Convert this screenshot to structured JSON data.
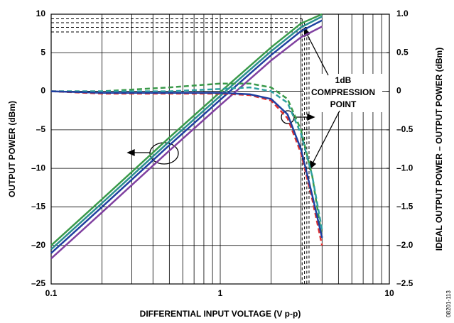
{
  "chart_data": {
    "type": "line",
    "xlabel": "DIFFERENTIAL INPUT VOLTAGE (V p-p)",
    "ylabel": "OUTPUT POWER (dBm)",
    "y2label": "IDEAL OUTPUT POWER – OUTPUT POWER (dBm)",
    "xscale": "log",
    "xlim": [
      0.1,
      10
    ],
    "xticks": [
      0.1,
      1,
      10
    ],
    "x_minor_ticks": [
      0.2,
      0.3,
      0.4,
      0.5,
      0.6,
      0.7,
      0.8,
      0.9,
      2,
      3,
      4,
      5,
      6,
      7,
      8,
      9
    ],
    "ylim": [
      -25,
      10
    ],
    "yticks": [
      {
        "value": -25,
        "label": "–25"
      },
      {
        "value": -20,
        "label": "–20"
      },
      {
        "value": -15,
        "label": "–15"
      },
      {
        "value": -10,
        "label": "–10"
      },
      {
        "value": -5,
        "label": "–5"
      },
      0,
      5,
      10
    ],
    "y2lim": [
      -2.5,
      1.0
    ],
    "y2ticks": [
      {
        "value": -2.5,
        "label": "–2.5"
      },
      {
        "value": -2.0,
        "label": "–2.0"
      },
      {
        "value": -1.5,
        "label": "–1.5"
      },
      {
        "value": -1.0,
        "label": "–1.0"
      },
      {
        "value": -0.5,
        "label": "–0.5"
      },
      0,
      0.5,
      {
        "value": 1.0,
        "label": "1.0"
      }
    ],
    "grid": true,
    "series": [
      {
        "color": "#3a9a4a",
        "dashed": false,
        "x": [
          0.1,
          0.2,
          0.5,
          1,
          2,
          3,
          4
        ],
        "values": [
          -20.0,
          -14.0,
          -6.0,
          -0.1,
          5.7,
          8.8,
          10.0
        ]
      },
      {
        "color": "#2a8f8f",
        "dashed": false,
        "x": [
          0.1,
          0.2,
          0.5,
          1,
          2,
          3,
          4
        ],
        "values": [
          -20.5,
          -14.5,
          -6.5,
          -0.6,
          5.2,
          8.3,
          9.7
        ]
      },
      {
        "color": "#2040a0",
        "dashed": false,
        "x": [
          0.1,
          0.2,
          0.5,
          1,
          2,
          3,
          4
        ],
        "values": [
          -21.0,
          -15.0,
          -7.0,
          -1.1,
          4.7,
          7.8,
          9.2
        ]
      },
      {
        "color": "#8040a0",
        "dashed": false,
        "x": [
          0.1,
          0.2,
          0.5,
          1,
          2,
          3,
          4
        ],
        "values": [
          -21.7,
          -15.7,
          -7.7,
          -1.8,
          4.0,
          7.0,
          8.4
        ]
      },
      {
        "color": "#3a9a4a",
        "dashed": true,
        "axis": "y2",
        "x": [
          0.1,
          0.2,
          0.5,
          1,
          1.5,
          2,
          2.5,
          3,
          3.5,
          4
        ],
        "values": [
          0,
          0,
          0.05,
          0.1,
          0.1,
          0.05,
          -0.1,
          -0.5,
          -1.1,
          -1.9
        ]
      },
      {
        "color": "#2fa0a0",
        "dashed": true,
        "axis": "y2",
        "x": [
          0.1,
          0.2,
          0.5,
          1,
          1.5,
          2,
          2.5,
          3,
          3.5,
          4
        ],
        "values": [
          0,
          0,
          0,
          0.03,
          0.05,
          0,
          -0.15,
          -0.55,
          -1.1,
          -1.8
        ]
      },
      {
        "color": "#e03030",
        "dashed": true,
        "axis": "y2",
        "x": [
          0.1,
          0.2,
          0.5,
          1,
          1.5,
          2,
          2.5,
          3,
          3.5,
          4
        ],
        "values": [
          0,
          -0.03,
          -0.03,
          -0.03,
          -0.05,
          -0.12,
          -0.35,
          -0.8,
          -1.4,
          -2.0
        ]
      },
      {
        "color": "#2040a0",
        "dashed": false,
        "axis": "y2",
        "x": [
          0.1,
          0.2,
          0.5,
          1,
          1.5,
          2,
          2.5,
          3,
          3.5,
          4
        ],
        "values": [
          0,
          -0.02,
          -0.02,
          -0.02,
          -0.04,
          -0.1,
          -0.3,
          -0.75,
          -1.35,
          -1.9
        ]
      }
    ],
    "compression_points": {
      "x": [
        3.05,
        3.15,
        3.25,
        3.35
      ],
      "y": [
        9.4,
        8.9,
        8.3,
        7.7
      ]
    },
    "annotation": [
      "1dB",
      "COMPRESSION",
      "POINT"
    ],
    "figure_id": "08201-113"
  }
}
